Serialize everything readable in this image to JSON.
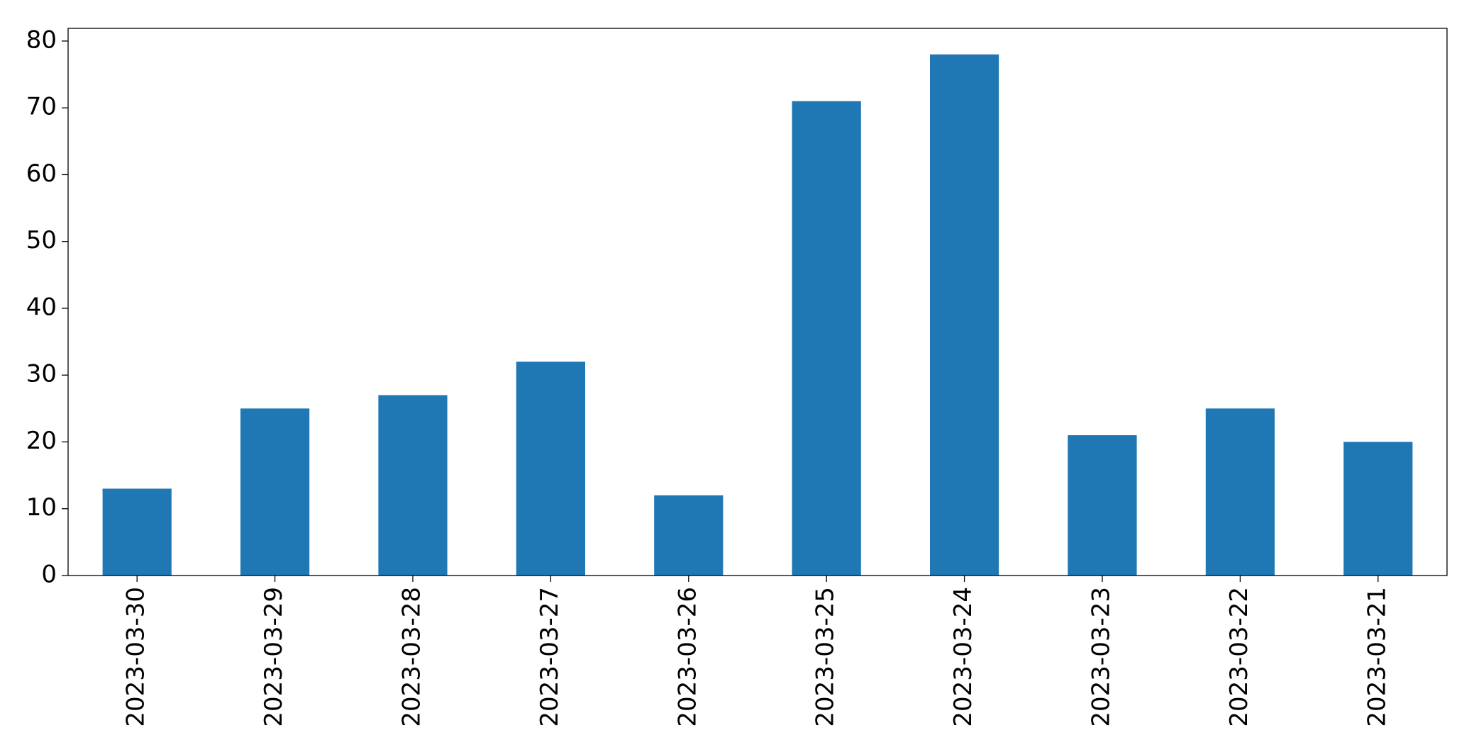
{
  "chart_data": {
    "type": "bar",
    "categories": [
      "2023-03-30",
      "2023-03-29",
      "2023-03-28",
      "2023-03-27",
      "2023-03-26",
      "2023-03-25",
      "2023-03-24",
      "2023-03-23",
      "2023-03-22",
      "2023-03-21"
    ],
    "values": [
      13,
      25,
      27,
      32,
      12,
      71,
      78,
      21,
      25,
      20
    ],
    "color": "#1f77b4",
    "ylim": [
      0,
      81.9
    ],
    "yticks": [
      0,
      10,
      20,
      30,
      40,
      50,
      60,
      70,
      80
    ],
    "grid": false
  }
}
